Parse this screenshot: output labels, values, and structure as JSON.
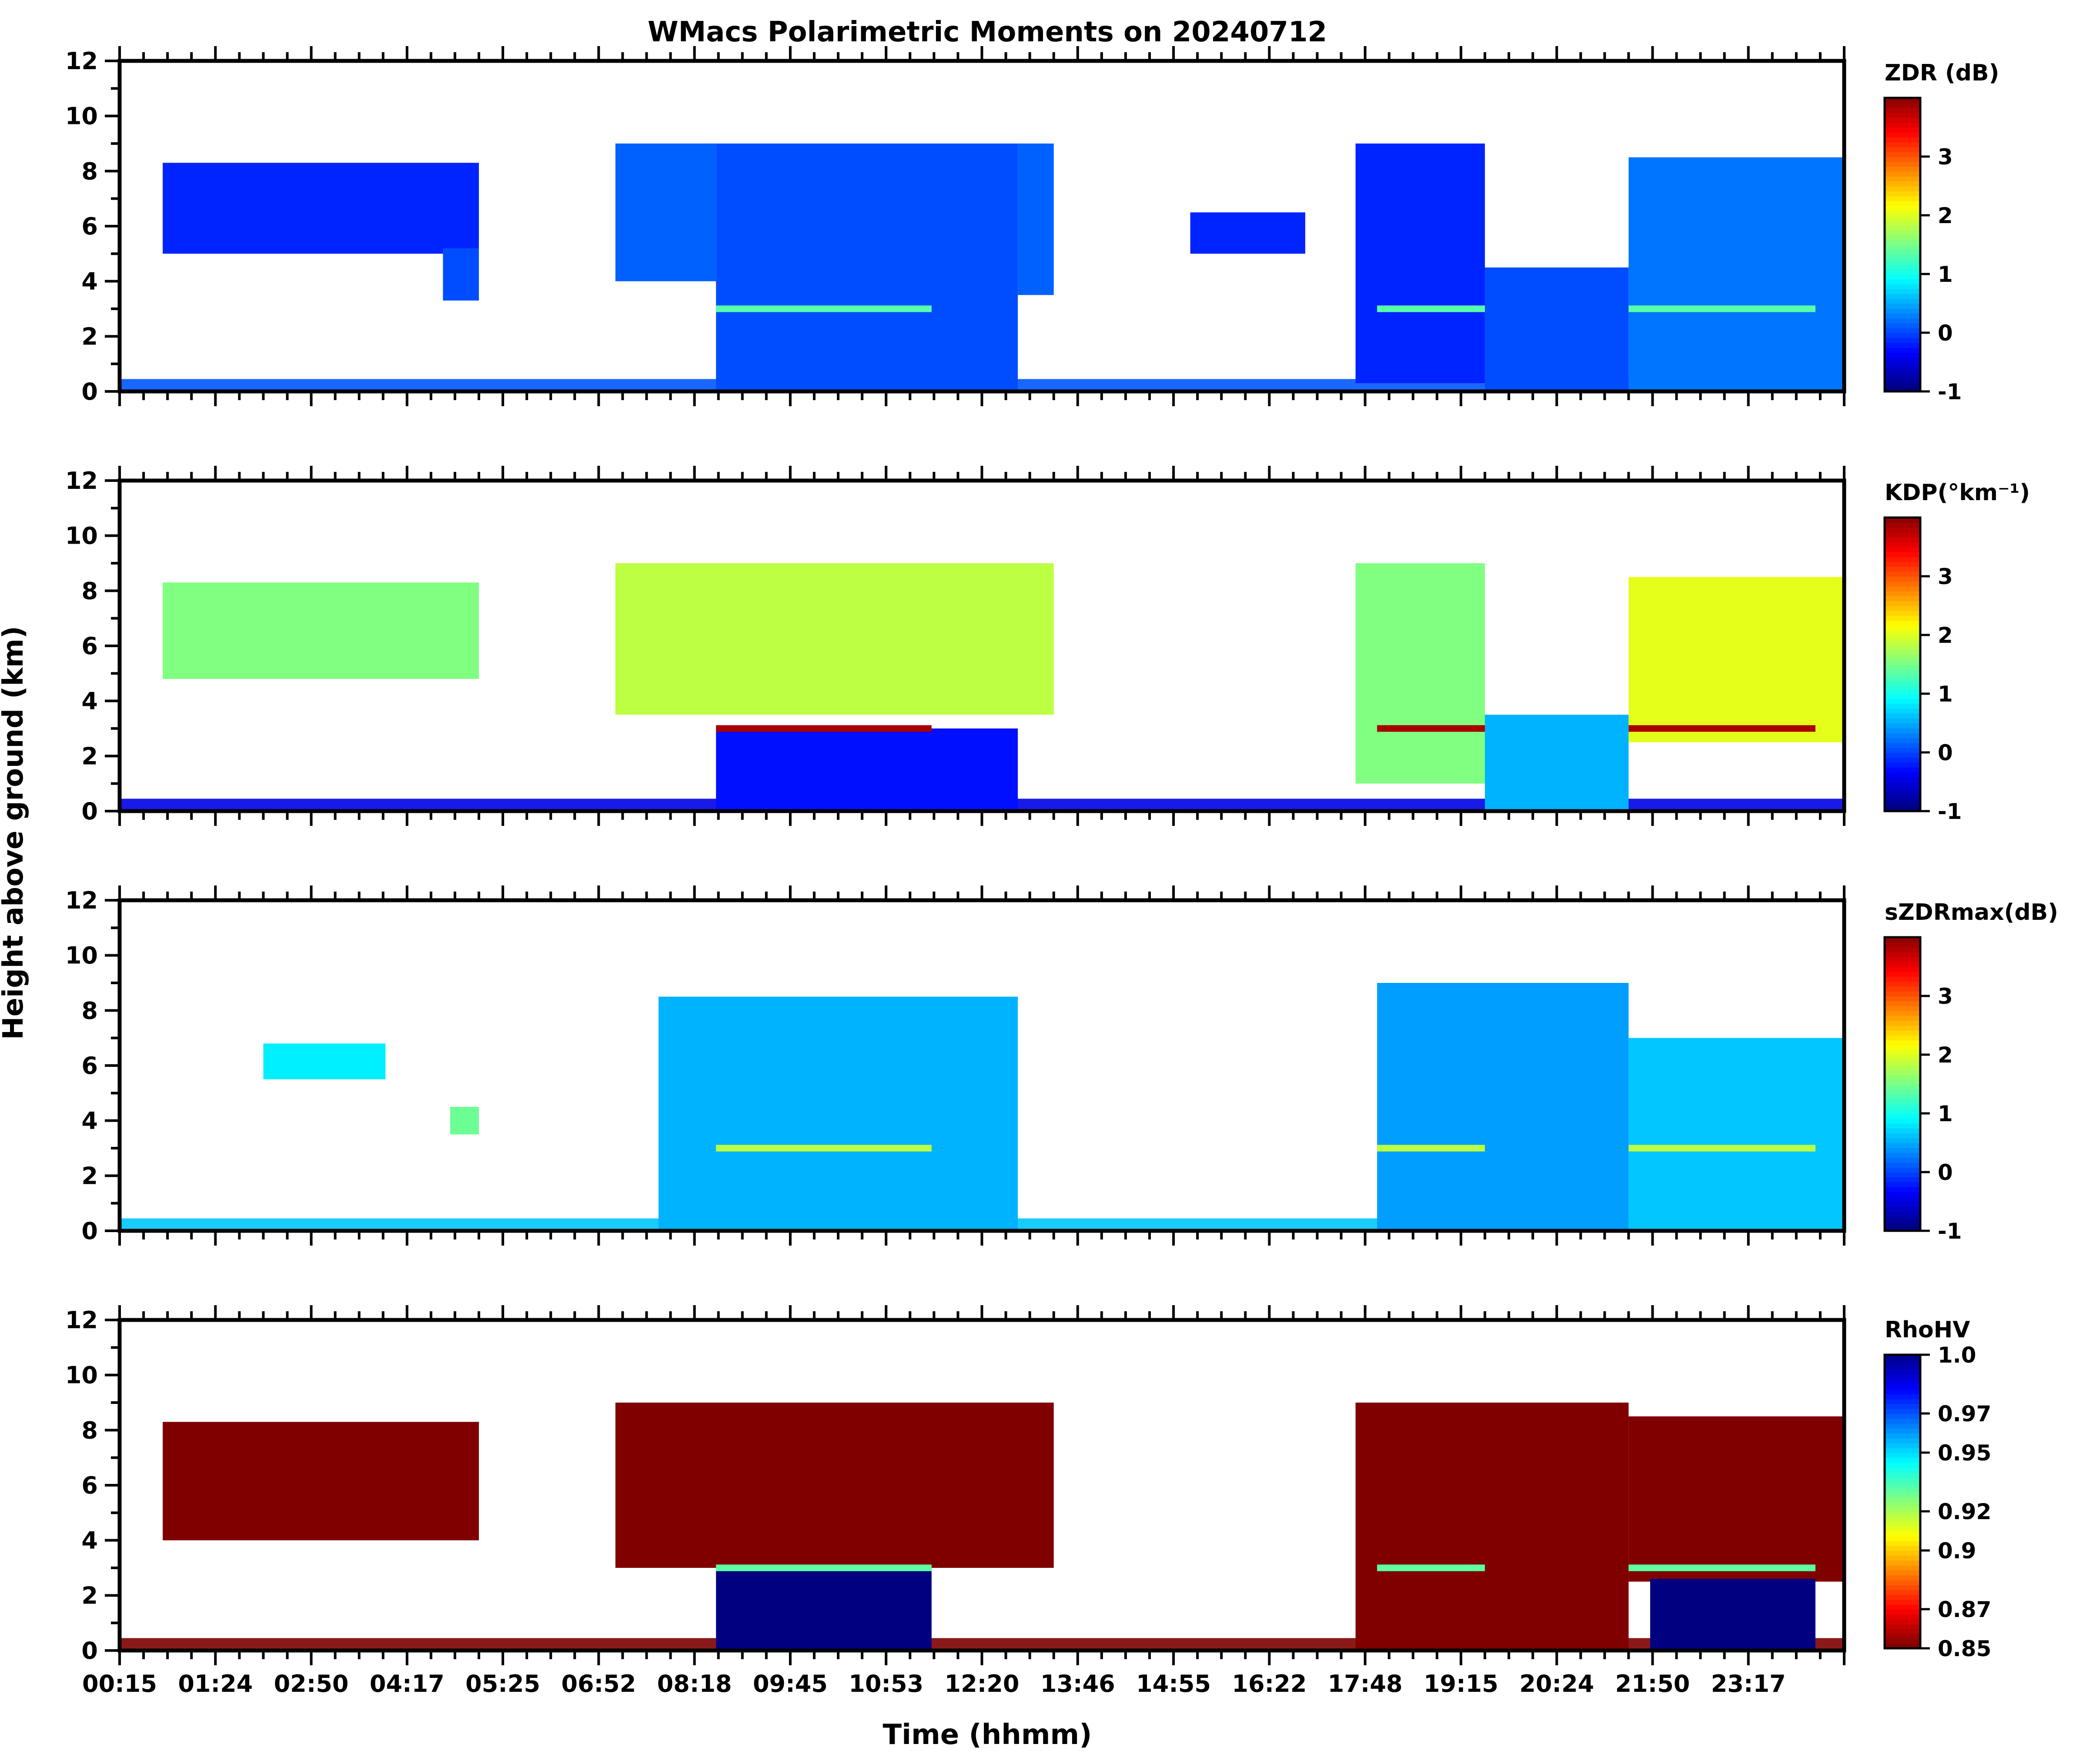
{
  "chart_data": {
    "type": "heatmap",
    "title": "WMacs Polarimetric Moments on 20240712",
    "xlabel": "Time (hhmm)",
    "ylabel": "Height above ground (km)",
    "x_tick_labels": [
      "00:15",
      "01:24",
      "02:50",
      "04:17",
      "05:25",
      "06:52",
      "08:18",
      "09:45",
      "10:53",
      "12:20",
      "13:46",
      "14:55",
      "16:22",
      "17:48",
      "19:15",
      "20:24",
      "21:50",
      "23:17"
    ],
    "ylim": [
      0,
      12
    ],
    "y_ticks": [
      0,
      2,
      4,
      6,
      8,
      10,
      12
    ],
    "panels": [
      {
        "name": "zdr",
        "colorbar_label": "ZDR (dB)",
        "colormap": "jet",
        "clim": [
          -1,
          4
        ],
        "colorbar_ticks": [
          "-1",
          "0",
          "1",
          "2",
          "3"
        ],
        "colorbar_tick_values": [
          -1,
          0,
          1,
          2,
          3
        ],
        "background_value": 0.05,
        "bright_band": {
          "value": 1.3,
          "height_km": 3.0
        },
        "regions": [
          {
            "t0": 0.6,
            "t1": 5.0,
            "h0": 5.0,
            "h1": 8.3,
            "v": -0.2
          },
          {
            "t0": 4.5,
            "t1": 5.0,
            "h0": 3.3,
            "h1": 5.2,
            "v": 0.0
          },
          {
            "t0": 6.9,
            "t1": 8.3,
            "h0": 4.0,
            "h1": 9.0,
            "v": 0.1
          },
          {
            "t0": 8.3,
            "t1": 12.5,
            "h0": 0.0,
            "h1": 9.0,
            "v": 0.0
          },
          {
            "t0": 12.5,
            "t1": 13.0,
            "h0": 3.5,
            "h1": 9.0,
            "v": 0.1
          },
          {
            "t0": 14.9,
            "t1": 16.5,
            "h0": 5.0,
            "h1": 6.5,
            "v": -0.2
          },
          {
            "t0": 17.2,
            "t1": 19.0,
            "h0": 0.3,
            "h1": 9.0,
            "v": -0.2
          },
          {
            "t0": 19.0,
            "t1": 21.0,
            "h0": 0.0,
            "h1": 4.5,
            "v": 0.0
          },
          {
            "t0": 21.0,
            "t1": 24.0,
            "h0": 0.0,
            "h1": 8.5,
            "v": 0.2
          }
        ]
      },
      {
        "name": "kdp",
        "colorbar_label": "KDP(°km⁻¹)",
        "colormap": "jet",
        "clim": [
          -1,
          4
        ],
        "colorbar_ticks": [
          "-1",
          "0",
          "1",
          "2",
          "3"
        ],
        "colorbar_tick_values": [
          -1,
          0,
          1,
          2,
          3
        ],
        "background_value": -0.5,
        "bright_band": {
          "value": 3.8,
          "height_km": 3.0
        },
        "regions": [
          {
            "t0": 0.6,
            "t1": 5.0,
            "h0": 4.8,
            "h1": 8.3,
            "v": 1.5
          },
          {
            "t0": 6.9,
            "t1": 13.0,
            "h0": 3.5,
            "h1": 9.0,
            "v": 1.8
          },
          {
            "t0": 8.3,
            "t1": 12.5,
            "h0": 0.0,
            "h1": 3.0,
            "v": -0.3
          },
          {
            "t0": 17.2,
            "t1": 19.0,
            "h0": 1.0,
            "h1": 9.0,
            "v": 1.5
          },
          {
            "t0": 19.0,
            "t1": 21.0,
            "h0": 0.0,
            "h1": 3.5,
            "v": 0.5
          },
          {
            "t0": 21.0,
            "t1": 24.0,
            "h0": 2.5,
            "h1": 8.5,
            "v": 2.0
          }
        ]
      },
      {
        "name": "szdrmax",
        "colorbar_label": "sZDRmax(dB)",
        "colormap": "jet",
        "clim": [
          -1,
          4
        ],
        "colorbar_ticks": [
          "-1",
          "0",
          "1",
          "2",
          "3"
        ],
        "colorbar_tick_values": [
          -1,
          0,
          1,
          2,
          3
        ],
        "background_value": 0.6,
        "bright_band": {
          "value": 1.8,
          "height_km": 3.0
        },
        "regions": [
          {
            "t0": 2.0,
            "t1": 3.7,
            "h0": 5.5,
            "h1": 6.8,
            "v": 0.8
          },
          {
            "t0": 4.6,
            "t1": 5.0,
            "h0": 3.5,
            "h1": 4.5,
            "v": 1.4
          },
          {
            "t0": 7.5,
            "t1": 12.5,
            "h0": 0.0,
            "h1": 8.5,
            "v": 0.5
          },
          {
            "t0": 17.5,
            "t1": 21.0,
            "h0": 0.0,
            "h1": 9.0,
            "v": 0.4
          },
          {
            "t0": 21.0,
            "t1": 24.0,
            "h0": 0.0,
            "h1": 7.0,
            "v": 0.6
          }
        ]
      },
      {
        "name": "rhohv",
        "colorbar_label": "RhoHV",
        "colormap": "jet_r",
        "clim": [
          0.85,
          1.0
        ],
        "colorbar_ticks": [
          "0.85",
          "0.87",
          "0.9",
          "0.92",
          "0.95",
          "0.97",
          "1.0"
        ],
        "colorbar_tick_values": [
          0.85,
          0.87,
          0.9,
          0.92,
          0.95,
          0.97,
          1.0
        ],
        "background_value": 0.85,
        "bright_band": {
          "value": 0.93,
          "height_km": 3.0
        },
        "regions": [
          {
            "t0": 0.6,
            "t1": 5.0,
            "h0": 4.0,
            "h1": 8.3,
            "v": 0.85
          },
          {
            "t0": 6.9,
            "t1": 13.0,
            "h0": 3.0,
            "h1": 9.0,
            "v": 0.85
          },
          {
            "t0": 8.3,
            "t1": 11.3,
            "h0": 0.0,
            "h1": 3.0,
            "v": 1.0
          },
          {
            "t0": 17.2,
            "t1": 21.0,
            "h0": 0.0,
            "h1": 9.0,
            "v": 0.85
          },
          {
            "t0": 21.0,
            "t1": 24.0,
            "h0": 2.5,
            "h1": 8.5,
            "v": 0.85
          },
          {
            "t0": 21.3,
            "t1": 23.6,
            "h0": 0.0,
            "h1": 2.6,
            "v": 1.0
          }
        ]
      }
    ]
  }
}
